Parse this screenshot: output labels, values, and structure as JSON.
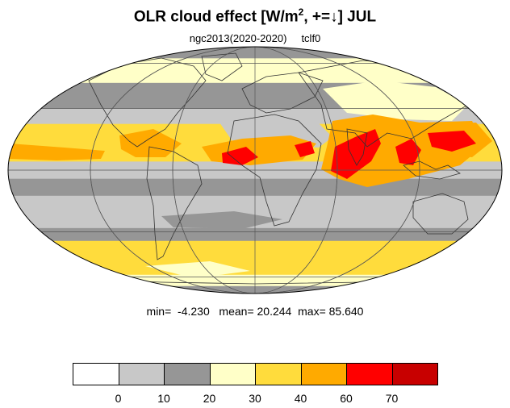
{
  "title": {
    "prefix": "OLR cloud effect [W/m",
    "sup": "2",
    "suffix": ", +=↓]  JUL"
  },
  "subtitle": {
    "case": "ngc2013(2020-2020)",
    "variable": "tclf0"
  },
  "stats": {
    "min_label": "min=",
    "min": "-4.230",
    "mean_label": "mean=",
    "mean": "20.244",
    "max_label": "max=",
    "max": "85.640"
  },
  "colorbar": {
    "colors": [
      "#ffffff",
      "#c8c8c8",
      "#969696",
      "#ffffc8",
      "#ffdc3c",
      "#ffaa00",
      "#ff0000",
      "#c80000"
    ],
    "ticks": [
      "0",
      "10",
      "20",
      "30",
      "40",
      "60",
      "70"
    ]
  },
  "map": {
    "projection": "mollweide",
    "bands": [
      {
        "lat_from": 90,
        "lat_to": 65,
        "color": "#969696"
      },
      {
        "lat_from": 65,
        "lat_to": 45,
        "color": "#ffffc8"
      },
      {
        "lat_from": 45,
        "lat_to": 30,
        "color": "#969696"
      },
      {
        "lat_from": 30,
        "lat_to": 22,
        "color": "#c8c8c8"
      },
      {
        "lat_from": 22,
        "lat_to": 4,
        "color": "#ffdc3c"
      },
      {
        "lat_from": 4,
        "lat_to": -4,
        "color": "#c8c8c8"
      },
      {
        "lat_from": -4,
        "lat_to": -12,
        "color": "#969696"
      },
      {
        "lat_from": -12,
        "lat_to": -28,
        "color": "#c8c8c8"
      },
      {
        "lat_from": -28,
        "lat_to": -35,
        "color": "#969696"
      },
      {
        "lat_from": -35,
        "lat_to": -58,
        "color": "#ffdc3c"
      },
      {
        "lat_from": -58,
        "lat_to": -70,
        "color": "#ffffc8"
      },
      {
        "lat_from": -70,
        "lat_to": -90,
        "color": "#969696"
      }
    ]
  }
}
